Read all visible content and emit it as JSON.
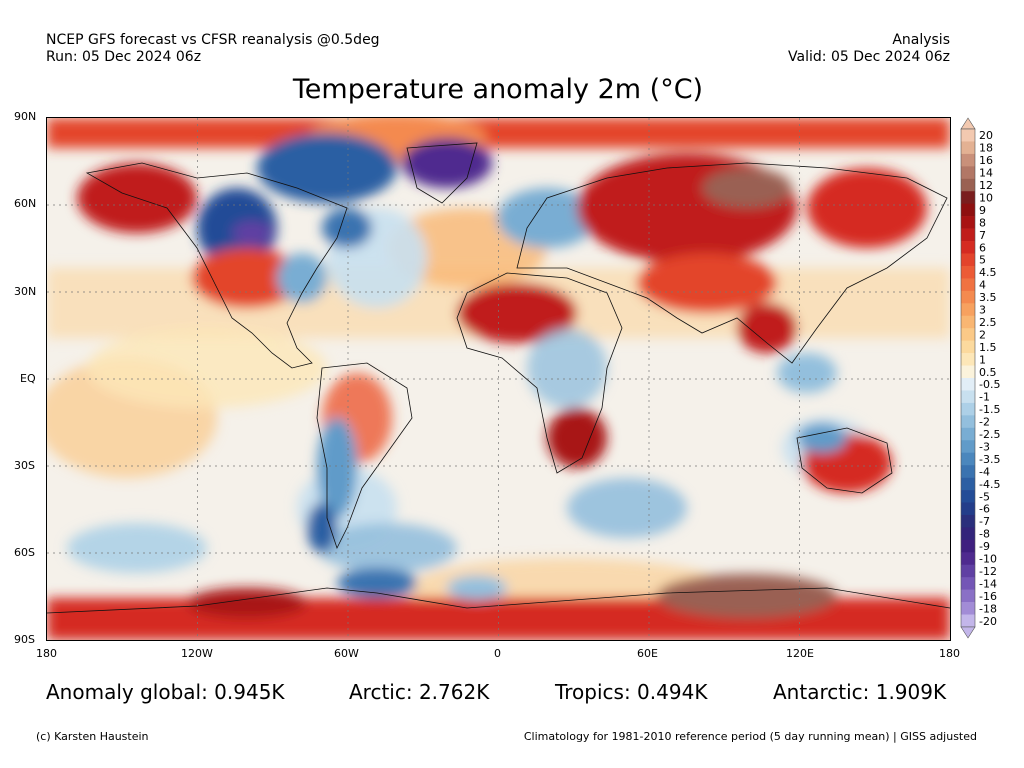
{
  "header": {
    "model_line": "NCEP GFS forecast vs CFSR reanalysis @0.5deg",
    "run_line": "Run: 05 Dec 2024 06z",
    "mode": "Analysis",
    "valid_line": "Valid: 05 Dec 2024 06z"
  },
  "title": "Temperature anomaly 2m (°C)",
  "map": {
    "lat_labels": [
      "90N",
      "60N",
      "30N",
      "EQ",
      "30S",
      "60S",
      "90S"
    ],
    "lon_labels": [
      "180",
      "120W",
      "60W",
      "0",
      "60E",
      "120E",
      "180"
    ]
  },
  "colorbar": {
    "labels": [
      "20",
      "18",
      "16",
      "14",
      "12",
      "10",
      "9",
      "8",
      "7",
      "6",
      "5",
      "4.5",
      "4",
      "3.5",
      "3",
      "2.5",
      "2",
      "1.5",
      "1",
      "0.5",
      "-0.5",
      "-1",
      "-1.5",
      "-2",
      "-2.5",
      "-3",
      "-3.5",
      "-4",
      "-4.5",
      "-5",
      "-6",
      "-7",
      "-8",
      "-9",
      "-10",
      "-12",
      "-14",
      "-16",
      "-18",
      "-20"
    ],
    "colors": [
      "#f3c9b0",
      "#e3b193",
      "#c9907a",
      "#b27766",
      "#9a6152",
      "#7a1e1e",
      "#8e1010",
      "#a81313",
      "#c01d1a",
      "#d52b22",
      "#e3442c",
      "#ec5b36",
      "#f07242",
      "#f48a4f",
      "#f7a15f",
      "#f9b672",
      "#fbc987",
      "#fcda9e",
      "#fde7b8",
      "#fbf3dc",
      "#e2eef7",
      "#c8e0ef",
      "#add0e7",
      "#93bfdd",
      "#79add3",
      "#619bc9",
      "#4b87bd",
      "#3a73b0",
      "#2c5fa3",
      "#234c97",
      "#233d8a",
      "#2a2f7c",
      "#32247a",
      "#3f1f7f",
      "#4f2a8f",
      "#6040a3",
      "#7456b6",
      "#8a70c6",
      "#a28cd6",
      "#c3b6ea"
    ]
  },
  "stats": {
    "global": "Anomaly global: 0.945K",
    "arctic": "Arctic: 2.762K",
    "tropics": "Tropics: 0.494K",
    "antarctic": "Antarctic: 1.909K"
  },
  "footer": {
    "credit": "(c) Karsten Haustein",
    "climatology": "Climatology for 1981-2010 reference period (5 day running mean) | GISS adjusted"
  }
}
